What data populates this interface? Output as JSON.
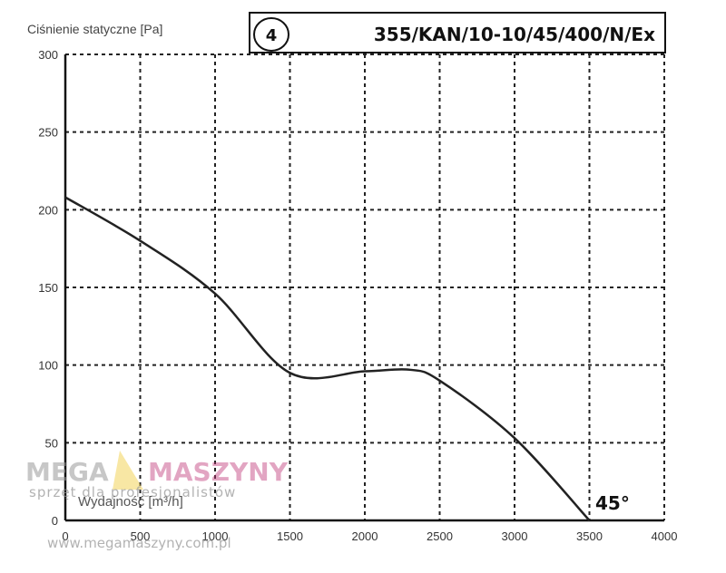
{
  "chart_data": {
    "type": "line",
    "ylabel": "Ciśnienie statyczne [Pa]",
    "xlabel": "Wydajność [m³/h]",
    "xlim": [
      0,
      4000
    ],
    "ylim": [
      0,
      300
    ],
    "xticks": [
      "0",
      "500",
      "1000",
      "1500",
      "2000",
      "2500",
      "3000",
      "3500",
      "4000"
    ],
    "yticks": [
      "0",
      "50",
      "100",
      "150",
      "200",
      "250",
      "300"
    ],
    "grid": true,
    "series": [
      {
        "name": "4",
        "annotation": "45°",
        "x": [
          0,
          500,
          1000,
          1500,
          2000,
          2300,
          2500,
          3000,
          3500
        ],
        "y": [
          208,
          180,
          146,
          95,
          96,
          97,
          90,
          53,
          0
        ]
      }
    ],
    "model": "355/KAN/10-10/45/400/N/Ex"
  },
  "watermark": {
    "brand_left": "MEGA",
    "brand_right": "MASZYNY",
    "tagline": "sprzęt dla profesjonalistów",
    "url": "www.megamaszyny.com.pl",
    "color_accent": "#c0397a"
  }
}
